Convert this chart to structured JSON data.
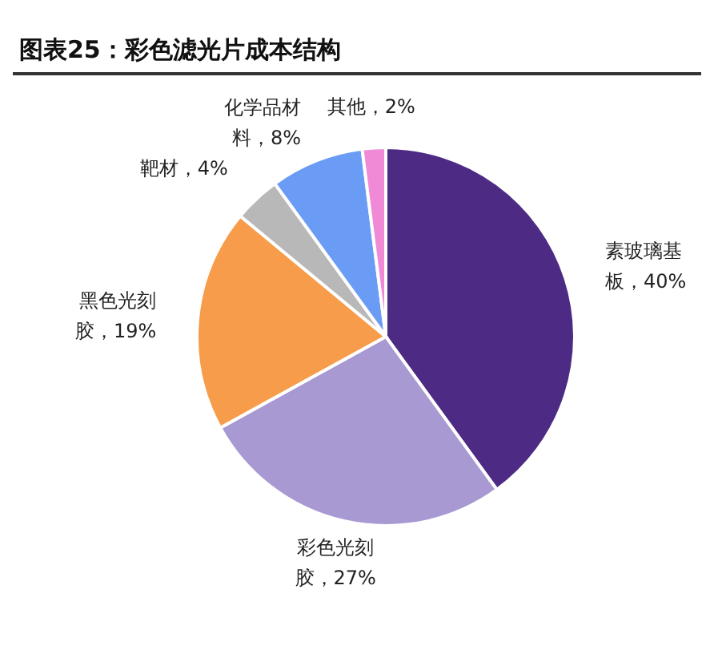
{
  "chart_data": {
    "type": "pie",
    "title": "图表25：彩色滤光片成本结构",
    "categories": [
      "素玻璃基板",
      "彩色光刻胶",
      "黑色光刻胶",
      "靶材",
      "化学品材料",
      "其他"
    ],
    "values": [
      40,
      27,
      19,
      4,
      8,
      2
    ],
    "value_labels": [
      "40%",
      "27%",
      "19%",
      "4%",
      "8%",
      "2%"
    ],
    "colors": [
      "#4d2a84",
      "#a899d2",
      "#f79c4a",
      "#b8b8b8",
      "#6a9cf6",
      "#f08ad6"
    ],
    "legend": false
  }
}
